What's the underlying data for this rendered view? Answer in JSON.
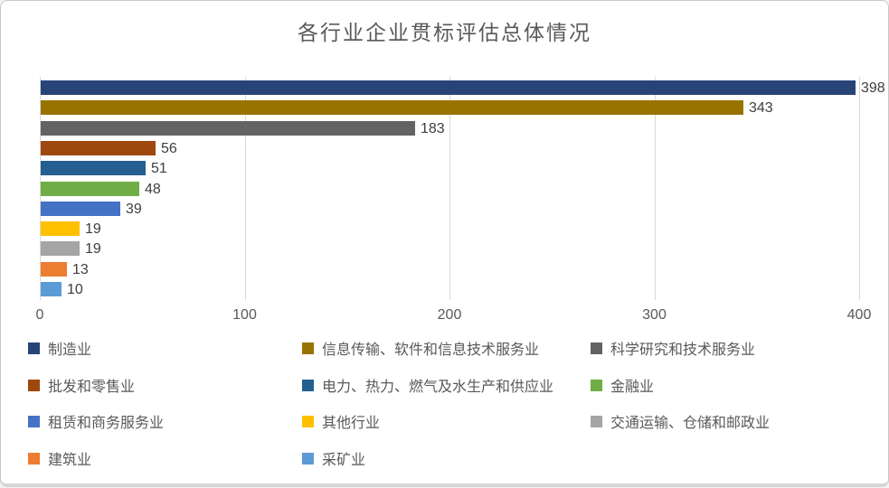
{
  "window": {
    "background": "#ffffff",
    "border_color": "#c9c9c9",
    "shadow_color": "#d6d6d6"
  },
  "chart_data": {
    "type": "bar",
    "orientation": "horizontal",
    "title": "各行业企业贯标评估总体情况",
    "categories": [
      "制造业",
      "信息传输、软件和信息技术服务业",
      "科学研究和技术服务业",
      "批发和零售业",
      "电力、热力、燃气及水生产和供应业",
      "金融业",
      "租赁和商务服务业",
      "其他行业",
      "交通运输、仓储和邮政业",
      "建筑业",
      "采矿业"
    ],
    "values": [
      398,
      343,
      183,
      56,
      51,
      48,
      39,
      19,
      19,
      13,
      10
    ],
    "colors": [
      "#264478",
      "#997300",
      "#636363",
      "#9E480E",
      "#255E91",
      "#70AD47",
      "#4472C4",
      "#FFC000",
      "#A5A5A5",
      "#ED7D31",
      "#5B9BD5"
    ],
    "data_labels_shown": true,
    "xlabel": "",
    "ylabel": "",
    "x_axis": {
      "min": 0,
      "max": 400,
      "ticks": [
        0,
        100,
        200,
        300,
        400
      ]
    },
    "grid": true,
    "gridline_color": "#d9d9d9",
    "title_color": "#595959",
    "tick_label_color": "#595959",
    "value_label_color": "#3f3f3f",
    "legend": {
      "position": "bottom",
      "columns": 3,
      "entries": [
        "制造业",
        "信息传输、软件和信息技术服务业",
        "科学研究和技术服务业",
        "批发和零售业",
        "电力、热力、燃气及水生产和供应业",
        "金融业",
        "租赁和商务服务业",
        "其他行业",
        "交通运输、仓储和邮政业",
        "建筑业",
        "采矿业"
      ]
    }
  }
}
